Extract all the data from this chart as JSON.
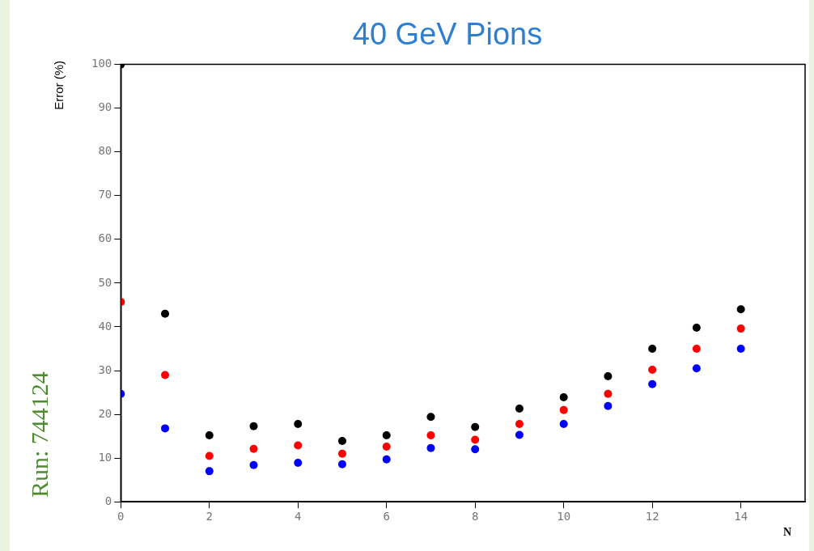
{
  "chart_data": {
    "type": "scatter",
    "title": "40 GeV Pions",
    "xlabel": "N",
    "ylabel": "Error (%)",
    "x": [
      0,
      1,
      2,
      3,
      4,
      5,
      6,
      7,
      8,
      9,
      10,
      11,
      12,
      13,
      14
    ],
    "series": [
      {
        "color": "#000000",
        "values": [
          100,
          43,
          15.2,
          17.3,
          17.8,
          13.9,
          15.2,
          19.4,
          17.1,
          21.3,
          23.9,
          28.7,
          35,
          39.8,
          44
        ]
      },
      {
        "color": "#ff0000",
        "values": [
          45.7,
          29,
          10.5,
          12.1,
          12.9,
          11,
          12.6,
          15.2,
          14.2,
          17.8,
          21,
          24.7,
          30.2,
          35,
          39.6
        ]
      },
      {
        "color": "#0000ff",
        "values": [
          24.7,
          16.8,
          7,
          8.4,
          8.9,
          8.6,
          9.7,
          12.3,
          12,
          15.3,
          17.8,
          21.9,
          26.9,
          30.5,
          35
        ]
      }
    ],
    "xlim": [
      0,
      15.45
    ],
    "xticks": [
      0,
      2,
      4,
      6,
      8,
      10,
      12,
      14
    ],
    "ylim": [
      0,
      100
    ],
    "yticks": [
      0,
      10,
      20,
      30,
      40,
      50,
      60,
      70,
      80,
      90,
      100
    ],
    "marker": "circle",
    "grid": false,
    "legend": false,
    "annotations": [
      "Run: 744124"
    ]
  }
}
